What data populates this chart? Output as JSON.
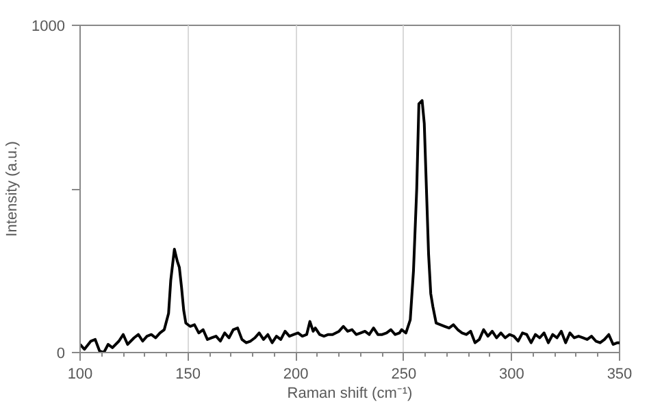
{
  "chart_data": {
    "type": "line",
    "xlabel": "Raman shift (cm⁻¹)",
    "ylabel": "Intensity (a.u.)",
    "xlim": [
      100,
      350
    ],
    "ylim": [
      0,
      1000
    ],
    "xticks": [
      100,
      150,
      200,
      250,
      300,
      350
    ],
    "yticks": [
      0,
      {
        "value": 500,
        "label": null
      },
      1000
    ],
    "grid": "x",
    "series": [
      {
        "color": "#000000",
        "x": [
          100,
          102,
          105,
          107,
          109,
          111,
          113,
          115,
          118,
          120,
          122,
          125,
          127,
          129,
          131,
          133,
          135,
          137,
          139,
          141,
          142,
          143.7,
          145,
          146,
          147,
          148,
          149,
          151,
          153,
          155,
          157,
          159,
          161,
          163,
          165,
          167,
          169,
          171,
          173,
          175,
          177,
          179,
          181,
          183,
          185,
          187,
          189,
          191,
          193,
          195,
          197,
          199,
          201,
          203,
          205,
          206.5,
          208,
          209,
          211,
          213,
          215,
          217,
          220,
          222,
          224,
          226,
          228,
          230,
          232,
          234,
          236,
          238,
          240,
          242,
          244,
          246,
          248,
          249,
          251,
          253,
          254.5,
          256,
          257,
          258.5,
          259.5,
          260.5,
          261.5,
          262.5,
          263.5,
          265,
          267,
          269,
          271,
          273,
          275,
          277,
          279,
          281,
          283,
          285,
          287,
          289,
          291,
          293,
          295,
          297,
          299,
          301,
          303,
          305,
          307,
          309,
          311,
          313,
          315,
          317,
          319,
          321,
          323,
          325,
          327,
          329,
          331,
          333,
          335,
          337,
          339,
          341,
          343,
          345,
          347,
          349,
          350
        ],
        "values": [
          25,
          10,
          35,
          40,
          5,
          0,
          25,
          15,
          35,
          55,
          25,
          45,
          55,
          35,
          50,
          55,
          45,
          60,
          70,
          120,
          220,
          316,
          280,
          260,
          200,
          130,
          90,
          80,
          85,
          60,
          70,
          40,
          45,
          50,
          35,
          60,
          45,
          70,
          75,
          40,
          30,
          35,
          45,
          60,
          40,
          55,
          30,
          50,
          40,
          65,
          50,
          55,
          60,
          50,
          55,
          95,
          65,
          75,
          55,
          50,
          55,
          55,
          65,
          80,
          65,
          70,
          55,
          60,
          65,
          55,
          75,
          55,
          55,
          60,
          70,
          55,
          60,
          70,
          60,
          100,
          250,
          500,
          760,
          770,
          700,
          500,
          300,
          180,
          140,
          90,
          85,
          80,
          75,
          85,
          70,
          60,
          55,
          65,
          30,
          40,
          70,
          50,
          65,
          45,
          60,
          45,
          55,
          50,
          35,
          60,
          55,
          30,
          55,
          45,
          60,
          30,
          55,
          45,
          65,
          30,
          60,
          45,
          50,
          45,
          40,
          50,
          35,
          30,
          40,
          55,
          25,
          30,
          30
        ]
      }
    ]
  }
}
